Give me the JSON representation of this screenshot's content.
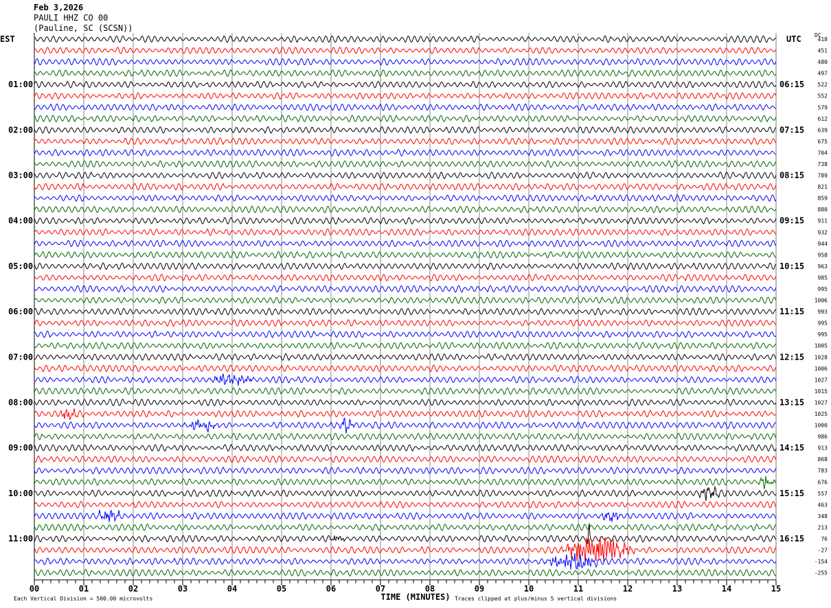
{
  "header": {
    "date": "Feb 3,2026",
    "station": "PAULI HHZ CO 00",
    "location": "(Pauline, SC (SCSN))"
  },
  "chart_data": {
    "type": "line",
    "subtype": "helicorder",
    "xlabel": "TIME (MINUTES)",
    "xlim": [
      0,
      15
    ],
    "x_ticks": [
      "00",
      "01",
      "02",
      "03",
      "04",
      "05",
      "06",
      "07",
      "08",
      "09",
      "10",
      "11",
      "12",
      "13",
      "14",
      "15"
    ],
    "grid": true,
    "left_axis_title": "EST",
    "right_axis_title": "UTC",
    "dc_title": "DC",
    "left_hour_labels": [
      "01:00",
      "02:00",
      "03:00",
      "04:00",
      "05:00",
      "06:00",
      "07:00",
      "08:00",
      "09:00",
      "10:00",
      "11:00"
    ],
    "right_hour_labels": [
      "06:15",
      "07:15",
      "08:15",
      "09:15",
      "10:15",
      "11:15",
      "12:15",
      "13:15",
      "14:15",
      "15:15",
      "16:15"
    ],
    "trace_colors": [
      "#000000",
      "#ff0000",
      "#0000ff",
      "#006400"
    ],
    "minutes_per_line": 15,
    "dc_offsets": [
      418,
      451,
      480,
      497,
      522,
      552,
      579,
      612,
      639,
      675,
      704,
      738,
      789,
      821,
      859,
      880,
      911,
      932,
      944,
      958,
      963,
      985,
      995,
      1006,
      993,
      995,
      995,
      1005,
      1028,
      1006,
      1027,
      1015,
      1027,
      1025,
      1000,
      986,
      913,
      868,
      783,
      676,
      557,
      463,
      348,
      213,
      76,
      -27,
      -154,
      -255
    ],
    "events": [
      {
        "trace": 33,
        "start_min": 0.5,
        "end_min": 0.9,
        "amp": 1.6
      },
      {
        "trace": 34,
        "start_min": 3.0,
        "end_min": 3.8,
        "amp": 1.3
      },
      {
        "trace": 34,
        "start_min": 6.1,
        "end_min": 6.5,
        "amp": 1.4
      },
      {
        "trace": 30,
        "start_min": 3.5,
        "end_min": 4.5,
        "amp": 1.3
      },
      {
        "trace": 39,
        "start_min": 14.6,
        "end_min": 15.0,
        "amp": 1.5
      },
      {
        "trace": 40,
        "start_min": 13.4,
        "end_min": 13.9,
        "amp": 1.5
      },
      {
        "trace": 42,
        "start_min": 1.2,
        "end_min": 1.8,
        "amp": 1.3
      },
      {
        "trace": 42,
        "start_min": 11.4,
        "end_min": 11.9,
        "amp": 1.4
      },
      {
        "trace": 44,
        "start_min": 6.0,
        "end_min": 6.3,
        "amp": 1.4
      },
      {
        "trace": 44,
        "start_min": 11.15,
        "end_min": 11.25,
        "amp": 5
      },
      {
        "trace": 45,
        "start_min": 10.6,
        "end_min": 12.2,
        "amp": 3
      },
      {
        "trace": 46,
        "start_min": 10.3,
        "end_min": 11.5,
        "amp": 1.8
      }
    ],
    "clipping_divisions": 5
  },
  "footer": {
    "scale_note": "Each Vertical Division =  500.00 microvolts",
    "clip_note": "Traces clipped at plus/minus 5 vertical divisions"
  }
}
